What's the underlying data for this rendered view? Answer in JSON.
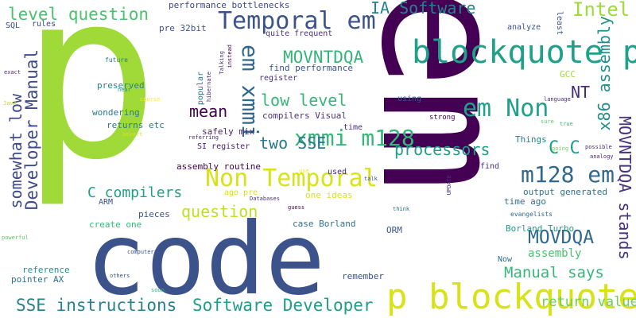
{
  "cloud": {
    "words": [
      {
        "text": "p",
        "color": "#a0da39"
      },
      {
        "text": "em",
        "color": "#440154"
      },
      {
        "text": "code",
        "color": "#3b528b"
      },
      {
        "text": "p blockquote",
        "color": "#d8e219"
      },
      {
        "text": "blockquote p",
        "color": "#1fa088"
      },
      {
        "text": "Temporal em",
        "color": "#3b528b"
      },
      {
        "text": "Non Temporal",
        "color": "#d8e219"
      },
      {
        "text": "em Non",
        "color": "#1fa088"
      },
      {
        "text": "m128 em",
        "color": "#31688e"
      },
      {
        "text": "xmmi m128",
        "color": "#35b779"
      },
      {
        "text": "em xmmi",
        "color": "#31688e"
      },
      {
        "text": "level question",
        "color": "#4ac16d"
      },
      {
        "text": "IA Software",
        "color": "#26828e"
      },
      {
        "text": "Intel",
        "color": "#9fda3a"
      },
      {
        "text": "Software Developer",
        "color": "#1f9e89"
      },
      {
        "text": "SSE instructions",
        "color": "#26828e"
      },
      {
        "text": "Developer Manual",
        "color": "#3e4a89"
      },
      {
        "text": "somewhat low",
        "color": "#3e4989"
      },
      {
        "text": "MOVNTDQA",
        "color": "#35b779"
      },
      {
        "text": "MOVDQA",
        "color": "#31688e"
      },
      {
        "text": "MOVNTDQA stands",
        "color": "#46327e"
      },
      {
        "text": "x86 assembly",
        "color": "#21918c"
      },
      {
        "text": "assembly",
        "color": "#4ac16d"
      },
      {
        "text": "low level",
        "color": "#35b779"
      },
      {
        "text": "mean",
        "color": "#440154"
      },
      {
        "text": "NT",
        "color": "#472d7b"
      },
      {
        "text": "C C",
        "color": "#1f9e89"
      },
      {
        "text": "processors",
        "color": "#1f9e89"
      },
      {
        "text": "two SSE",
        "color": "#2a788e"
      },
      {
        "text": "question",
        "color": "#bddf26"
      },
      {
        "text": "C compilers",
        "color": "#1fa088"
      },
      {
        "text": "Manual says",
        "color": "#35b779"
      },
      {
        "text": "return values",
        "color": "#6ece58"
      },
      {
        "text": "performance bottlenecks",
        "color": "#3e4989"
      },
      {
        "text": "pre 32bit",
        "color": "#3b528b"
      },
      {
        "text": "SQL",
        "color": "#3e4989"
      },
      {
        "text": "rules",
        "color": "#3e4989"
      },
      {
        "text": "quite frequent",
        "color": "#46337e"
      },
      {
        "text": "find performance",
        "color": "#3b528b"
      },
      {
        "text": "analyze",
        "color": "#3b528b"
      },
      {
        "text": "least",
        "color": "#3b528b"
      },
      {
        "text": "future",
        "color": "#2a788e"
      },
      {
        "text": "near",
        "color": "#21918c"
      },
      {
        "text": "preserved",
        "color": "#26828e"
      },
      {
        "text": "wondering",
        "color": "#2a788e"
      },
      {
        "text": "returns etc",
        "color": "#2a788e"
      },
      {
        "text": "register",
        "color": "#46327e"
      },
      {
        "text": "compilers Visual",
        "color": "#46327e"
      },
      {
        "text": "safely mix",
        "color": "#481f70"
      },
      {
        "text": "time",
        "color": "#46327e"
      },
      {
        "text": "Things",
        "color": "#26828e"
      },
      {
        "text": "assembly routine",
        "color": "#440154"
      },
      {
        "text": "SI register",
        "color": "#482374"
      },
      {
        "text": "used",
        "color": "#46327e"
      },
      {
        "text": "find",
        "color": "#46327e"
      },
      {
        "text": "using",
        "color": "#3b528b"
      },
      {
        "text": "strong",
        "color": "#440154"
      },
      {
        "text": "GCC",
        "color": "#a0da39"
      },
      {
        "text": "language",
        "color": "#482979"
      },
      {
        "text": "sure",
        "color": "#5ec962"
      },
      {
        "text": "true",
        "color": "#3fbc73"
      },
      {
        "text": "going",
        "color": "#6ece58"
      },
      {
        "text": "possible",
        "color": "#482979"
      },
      {
        "text": "analogy",
        "color": "#482979"
      },
      {
        "text": "output generated",
        "color": "#2c728e"
      },
      {
        "text": "time ago",
        "color": "#2c728e"
      },
      {
        "text": "evangelists",
        "color": "#31688e"
      },
      {
        "text": "Borland Turbo",
        "color": "#1f9e89"
      },
      {
        "text": "ORM",
        "color": "#3b528b"
      },
      {
        "text": "case Borland",
        "color": "#2c728e"
      },
      {
        "text": "one ideas",
        "color": "#d8e219"
      },
      {
        "text": "ago pre",
        "color": "#d8e219"
      },
      {
        "text": "ARM",
        "color": "#3b528b"
      },
      {
        "text": "pieces",
        "color": "#3b528b"
      },
      {
        "text": "create one",
        "color": "#35b779"
      },
      {
        "text": "reference",
        "color": "#21918c"
      },
      {
        "text": "pointer AX",
        "color": "#2c728e"
      },
      {
        "text": "remember",
        "color": "#3b528b"
      },
      {
        "text": "Now",
        "color": "#2c728e"
      },
      {
        "text": "exact",
        "color": "#482979"
      },
      {
        "text": "Java",
        "color": "#bddf26"
      },
      {
        "text": "course",
        "color": "#fde725"
      },
      {
        "text": "assert",
        "color": "#d8e219"
      },
      {
        "text": "referring",
        "color": "#482979"
      },
      {
        "text": "powerful",
        "color": "#5ec962"
      },
      {
        "text": "computers",
        "color": "#3b528b"
      },
      {
        "text": "others",
        "color": "#3b528b"
      },
      {
        "text": "soon",
        "color": "#35b779"
      },
      {
        "text": "Databases",
        "color": "#46327e"
      },
      {
        "text": "guess",
        "color": "#440154"
      },
      {
        "text": "talk",
        "color": "#3b528b"
      },
      {
        "text": "think",
        "color": "#2c728e"
      },
      {
        "text": "UPDATE",
        "color": "#46327e"
      },
      {
        "text": "instead",
        "color": "#440154"
      },
      {
        "text": "Talking",
        "color": "#46327e"
      },
      {
        "text": "popular",
        "color": "#2a788e"
      },
      {
        "text": "hibernate",
        "color": "#482979"
      },
      {
        "text": "use",
        "color": "#fde725"
      }
    ]
  }
}
